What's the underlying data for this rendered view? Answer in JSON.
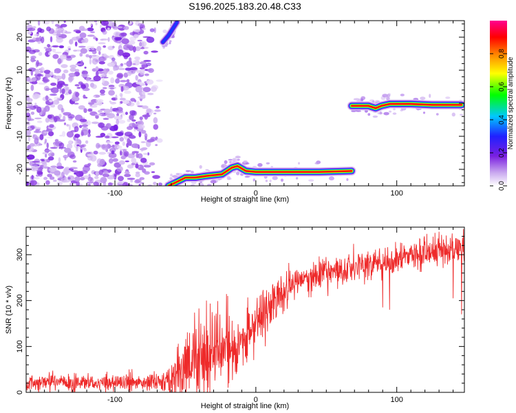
{
  "title": "S196.2025.183.20.48.C33",
  "colors": {
    "snr_line": "#ee2a2a",
    "axis": "#000000",
    "background": "#ffffff"
  },
  "chart_data": [
    {
      "type": "heatmap",
      "xlabel": "Height of straight line (km)",
      "ylabel": "Frequency (Hz)",
      "xlim": [
        -163,
        148
      ],
      "ylim": [
        -25,
        25
      ],
      "x_ticks": [
        -100,
        0,
        100
      ],
      "y_ticks": [
        20,
        10,
        0,
        -10,
        -20
      ],
      "colorbar": {
        "label": "Normalized spectral amplitude",
        "range": [
          0,
          1
        ],
        "ticks": [
          "0.0",
          "0.2",
          "0.4",
          "0.6",
          "0.8"
        ],
        "colormap": [
          "#ffffff",
          "#c9a8ef",
          "#7a1fe0",
          "#2020ff",
          "#00c8ff",
          "#00ff00",
          "#ffff00",
          "#ff8000",
          "#ff0000",
          "#ff0090"
        ]
      },
      "noise_region": {
        "x": [
          -163,
          -66
        ],
        "y": [
          -25,
          25
        ],
        "level": 0.12
      },
      "ridges": [
        {
          "name": "upper-left fragment",
          "points": [
            [
              -66,
              18.5
            ],
            [
              -62,
              20.5
            ],
            [
              -59,
              22.5
            ],
            [
              -56,
              24.5
            ]
          ],
          "amplitude": 0.35
        },
        {
          "name": "lower track",
          "points": [
            [
              -62,
              -25
            ],
            [
              -57,
              -24
            ],
            [
              -50,
              -22.5
            ],
            [
              -43,
              -22.5
            ],
            [
              -35,
              -22
            ],
            [
              -24,
              -21.5
            ],
            [
              -17,
              -19.5
            ],
            [
              -13,
              -19
            ],
            [
              -7,
              -20.5
            ],
            [
              0,
              -20.8
            ],
            [
              20,
              -20.8
            ],
            [
              45,
              -20.8
            ],
            [
              68,
              -20.5
            ]
          ],
          "amplitude": 0.9
        },
        {
          "name": "upper track",
          "points": [
            [
              68,
              -0.8
            ],
            [
              75,
              -0.8
            ],
            [
              80,
              -0.8
            ],
            [
              85,
              -1.5
            ],
            [
              89,
              -0.8
            ],
            [
              95,
              -0.2
            ],
            [
              110,
              -0.2
            ],
            [
              125,
              -0.5
            ],
            [
              146,
              -0.5
            ]
          ],
          "amplitude": 0.9
        }
      ]
    },
    {
      "type": "line",
      "xlabel": "Height of straight line (km)",
      "ylabel": "SNR (10 * v/v)",
      "xlim": [
        -163,
        148
      ],
      "ylim": [
        0,
        360
      ],
      "x_ticks": [
        -100,
        0,
        100
      ],
      "y_ticks": [
        0,
        100,
        200,
        300
      ],
      "trend": [
        [
          -163,
          22
        ],
        [
          -120,
          22
        ],
        [
          -80,
          22
        ],
        [
          -65,
          24
        ],
        [
          -55,
          40
        ],
        [
          -45,
          55
        ],
        [
          -35,
          70
        ],
        [
          -25,
          85
        ],
        [
          -15,
          100
        ],
        [
          -5,
          120
        ],
        [
          0,
          140
        ],
        [
          8,
          175
        ],
        [
          15,
          210
        ],
        [
          25,
          235
        ],
        [
          40,
          255
        ],
        [
          60,
          270
        ],
        [
          80,
          278
        ],
        [
          100,
          288
        ],
        [
          120,
          300
        ],
        [
          135,
          310
        ],
        [
          148,
          315
        ]
      ],
      "noise_std": [
        [
          -163,
          10
        ],
        [
          -66,
          10
        ],
        [
          -60,
          28
        ],
        [
          -40,
          55
        ],
        [
          -20,
          40
        ],
        [
          0,
          30
        ],
        [
          30,
          18
        ],
        [
          148,
          16
        ]
      ],
      "spikes": [
        {
          "x": -35,
          "y": 200
        },
        {
          "x": -39,
          "y": 150
        },
        {
          "x": -31,
          "y": 175
        },
        {
          "x": -20,
          "y": 210
        },
        {
          "x": -14,
          "y": 40
        },
        {
          "x": 90,
          "y": 185
        },
        {
          "x": 95,
          "y": 180
        },
        {
          "x": 140,
          "y": 205
        },
        {
          "x": 146,
          "y": 170
        },
        {
          "x": 130,
          "y": 350
        }
      ]
    }
  ]
}
